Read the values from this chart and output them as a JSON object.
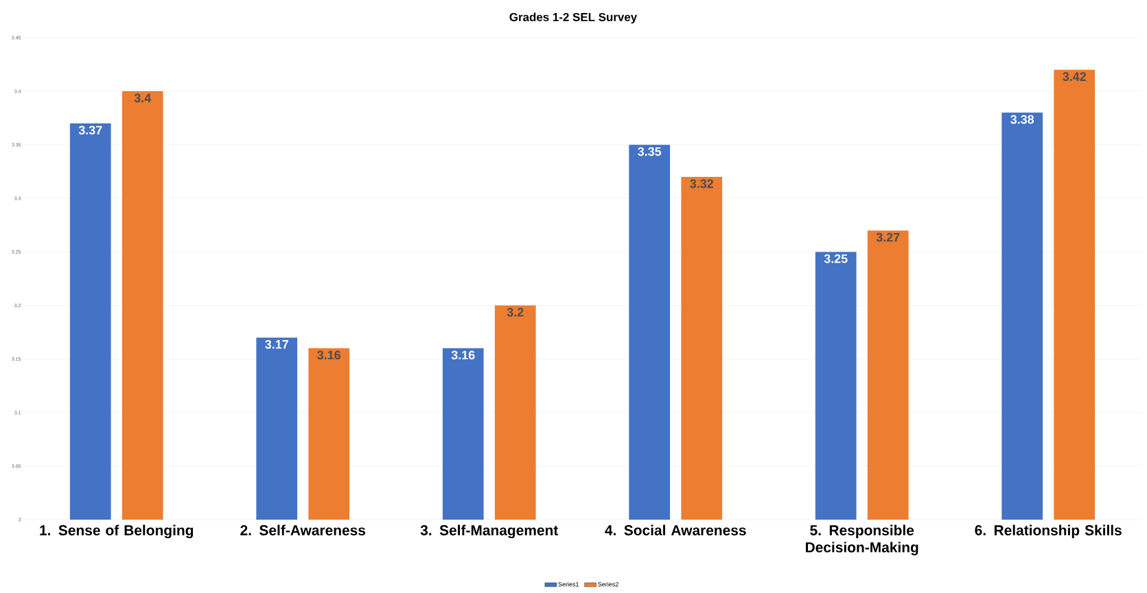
{
  "chart_data": {
    "type": "bar",
    "title": "Grades 1-2 SEL Survey",
    "categories": [
      "1. Sense of Belonging",
      "2. Self-Awareness",
      "3. Self-Management",
      "4. Social Awareness",
      "5. Responsible Decision-Making",
      "6. Relationship Skills"
    ],
    "series": [
      {
        "name": "Series1",
        "color": "#4472c4",
        "values": [
          3.37,
          3.17,
          3.16,
          3.35,
          3.25,
          3.38
        ]
      },
      {
        "name": "Series2",
        "color": "#ed7d31",
        "values": [
          3.4,
          3.16,
          3.2,
          3.32,
          3.27,
          3.42
        ]
      }
    ],
    "ylim": [
      3,
      3.45
    ],
    "yticks": [
      3,
      3.05,
      3.1,
      3.15,
      3.2,
      3.25,
      3.3,
      3.35,
      3.4,
      3.45
    ],
    "grid": "y",
    "legend": "bottom",
    "data_labels": true
  }
}
